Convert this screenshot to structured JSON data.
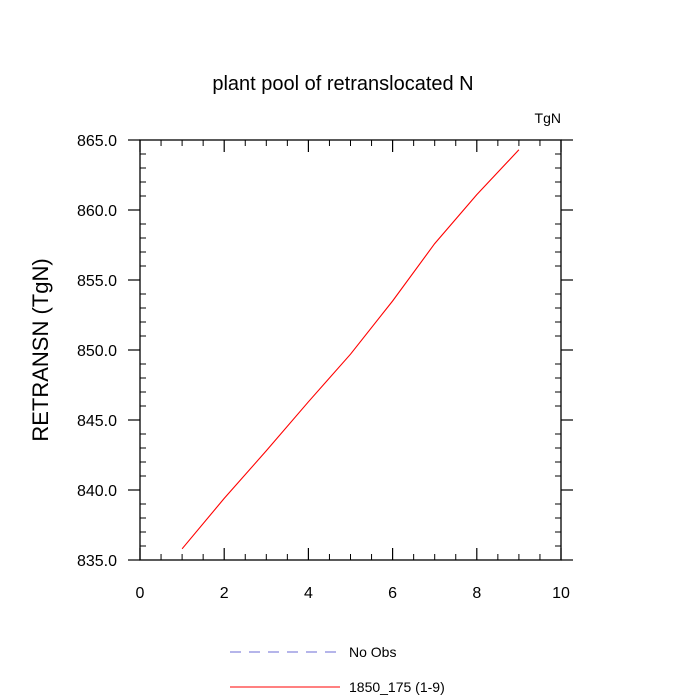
{
  "chart_data": {
    "type": "line",
    "title": "plant pool of retranslocated N",
    "units_label": "TgN",
    "ylabel": "RETRANSN  (TgN)",
    "xlabel": "",
    "xlim": [
      0,
      10
    ],
    "ylim": [
      835,
      865
    ],
    "x_ticks": [
      0,
      2,
      4,
      6,
      8,
      10
    ],
    "x_tick_labels": [
      "0",
      "2",
      "4",
      "6",
      "8",
      "10"
    ],
    "y_ticks": [
      835,
      840,
      845,
      850,
      855,
      860,
      865
    ],
    "y_tick_labels": [
      "835.0",
      "840.0",
      "845.0",
      "850.0",
      "855.0",
      "860.0",
      "865.0"
    ],
    "series": [
      {
        "name": "1850_175 (1-9)",
        "color": "#ff0000",
        "dash": "solid",
        "x": [
          1,
          2,
          3,
          4,
          5,
          6,
          7,
          8,
          9
        ],
        "values": [
          835.8,
          839.4,
          842.8,
          846.3,
          849.7,
          853.5,
          857.6,
          861.1,
          864.3
        ]
      }
    ],
    "legend": [
      {
        "label": "No Obs",
        "color": "#6b6bd6",
        "dash": "dashed"
      },
      {
        "label": "1850_175 (1-9)",
        "color": "#ff0000",
        "dash": "solid"
      }
    ],
    "legend_position": "bottom-center",
    "grid": false
  }
}
